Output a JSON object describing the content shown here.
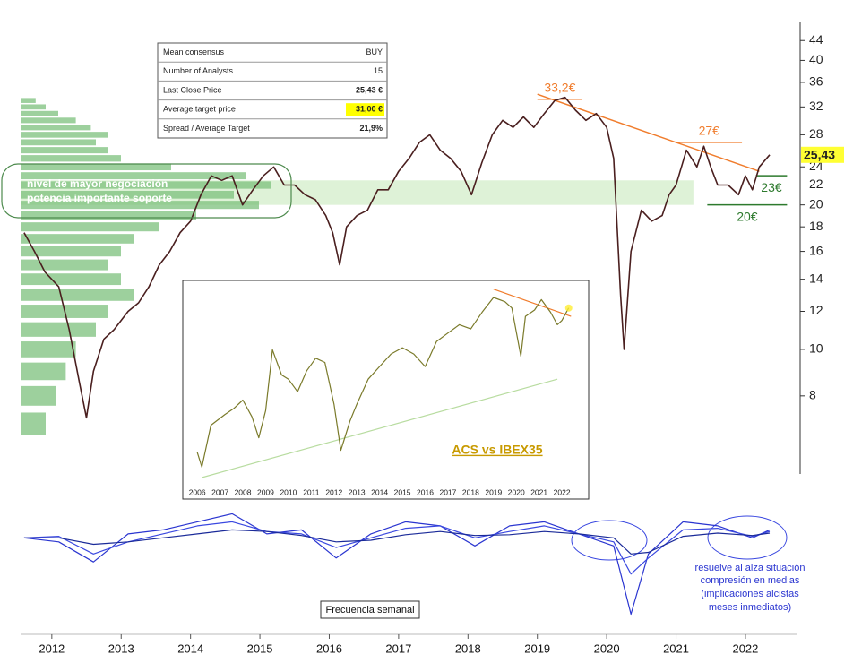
{
  "table": {
    "rows": [
      [
        "Mean consensus",
        "BUY"
      ],
      [
        "Number of Analysts",
        "15"
      ],
      [
        "Last Close Price",
        "25,43 €"
      ],
      [
        "Average target price",
        "31,00 €"
      ],
      [
        "Spread / Average Target",
        "21,9%"
      ]
    ]
  },
  "notes": {
    "support": [
      "nivel de mayor negociación",
      "potencia importante soporte"
    ],
    "compression": [
      "resuelve al alza situación",
      "compresión en medias",
      "(implicaciones alcistas",
      "meses inmediatos)"
    ],
    "frequency": "Frecuencia semanal"
  },
  "chart_data": [
    {
      "type": "line",
      "log_scale": true,
      "color": "#4a1f1f",
      "xlim": [
        2011.55,
        2022.75
      ],
      "ylim": [
        5.5,
        48
      ],
      "xticks": [
        2012,
        2013,
        2014,
        2015,
        2016,
        2017,
        2018,
        2019,
        2020,
        2021,
        2022
      ],
      "yticks": [
        44,
        40,
        36,
        32,
        28,
        24,
        22,
        20,
        18,
        16,
        14,
        12,
        10,
        8
      ],
      "last_value": {
        "value": 25.43,
        "label": "25,43"
      },
      "x": [
        2011.6,
        2011.75,
        2011.9,
        2012.1,
        2012.25,
        2012.4,
        2012.5,
        2012.6,
        2012.75,
        2012.9,
        2013.1,
        2013.25,
        2013.4,
        2013.55,
        2013.7,
        2013.85,
        2014.0,
        2014.15,
        2014.3,
        2014.45,
        2014.6,
        2014.75,
        2014.9,
        2015.05,
        2015.2,
        2015.35,
        2015.5,
        2015.65,
        2015.8,
        2015.95,
        2016.05,
        2016.15,
        2016.25,
        2016.4,
        2016.55,
        2016.7,
        2016.85,
        2017.0,
        2017.15,
        2017.3,
        2017.45,
        2017.6,
        2017.75,
        2017.9,
        2018.05,
        2018.2,
        2018.35,
        2018.5,
        2018.65,
        2018.8,
        2018.95,
        2019.1,
        2019.25,
        2019.4,
        2019.55,
        2019.7,
        2019.85,
        2020.0,
        2020.1,
        2020.2,
        2020.25,
        2020.35,
        2020.5,
        2020.65,
        2020.8,
        2020.9,
        2021.0,
        2021.15,
        2021.3,
        2021.4,
        2021.5,
        2021.6,
        2021.75,
        2021.9,
        2022.0,
        2022.1,
        2022.2,
        2022.35
      ],
      "values": [
        17.5,
        16,
        14.5,
        13.5,
        11,
        8.5,
        7.2,
        9,
        10.5,
        11,
        12,
        12.5,
        13.5,
        15,
        16,
        17.5,
        18.5,
        21,
        23,
        22.5,
        23,
        20,
        21.5,
        23,
        24,
        22,
        22,
        21,
        20.5,
        19,
        17.5,
        15,
        18,
        19,
        19.5,
        21.5,
        21.5,
        23.5,
        25,
        27,
        28,
        26,
        25,
        23.5,
        21,
        24.5,
        28,
        30,
        29,
        30.5,
        29,
        31,
        33,
        33.5,
        31.5,
        30,
        31,
        29,
        25,
        13,
        10,
        16,
        19.5,
        18.5,
        19,
        21,
        22,
        26,
        24,
        26.5,
        24,
        22,
        22,
        21,
        23,
        21.5,
        24,
        25.43
      ],
      "support_band": {
        "range": [
          20,
          22.5
        ],
        "x": [
          2011.55,
          2021.25
        ],
        "color": "#d8f0d0"
      },
      "trendline": {
        "x": [
          2019.0,
          2022.2
        ],
        "y": [
          34,
          23.5
        ],
        "color": "#f07c2c"
      },
      "levels": [
        {
          "value": 33.2,
          "label": "33,2€",
          "x": [
            2019.0,
            2019.65
          ],
          "color": "#f07c2c"
        },
        {
          "value": 27,
          "label": "27€",
          "x": [
            2021.0,
            2021.95
          ],
          "color": "#f07c2c"
        },
        {
          "value": 23,
          "label": "23€",
          "x": [
            2022.15,
            2022.6
          ],
          "color": "#2d7a2d"
        },
        {
          "value": 20,
          "label": "20€",
          "x": [
            2021.45,
            2022.6
          ],
          "color": "#2d7a2d"
        }
      ],
      "volume_profile": {
        "color": "#7cc07c",
        "levels": [
          7,
          8,
          9,
          10,
          11,
          12,
          13,
          14,
          15,
          16,
          17,
          18,
          19,
          20,
          21,
          22,
          23,
          24,
          25,
          26,
          27,
          28,
          29,
          30,
          31,
          32,
          33
        ],
        "values": [
          10,
          14,
          18,
          22,
          30,
          35,
          45,
          40,
          35,
          40,
          45,
          55,
          70,
          95,
          85,
          100,
          90,
          60,
          40,
          35,
          30,
          35,
          28,
          22,
          15,
          10,
          6
        ]
      }
    },
    {
      "type": "line",
      "ylim": [
        -1,
        0.45
      ],
      "x": [
        2011.6,
        2012.1,
        2012.6,
        2013.1,
        2013.6,
        2014.1,
        2014.6,
        2015.1,
        2015.6,
        2016.1,
        2016.6,
        2017.1,
        2017.6,
        2018.1,
        2018.6,
        2019.1,
        2019.6,
        2020.1,
        2020.35,
        2020.6,
        2021.1,
        2021.6,
        2022.1,
        2022.35
      ],
      "series": [
        {
          "color": "#2a35d0",
          "values": [
            0,
            -0.05,
            -0.3,
            0.05,
            0.1,
            0.2,
            0.3,
            0.05,
            0.1,
            -0.25,
            0.05,
            0.2,
            0.15,
            -0.1,
            0.15,
            0.2,
            0.05,
            -0.1,
            -0.95,
            -0.2,
            0.2,
            0.15,
            0,
            0.1
          ]
        },
        {
          "color": "#3a48e0",
          "values": [
            0,
            0.02,
            -0.2,
            -0.05,
            0.05,
            0.15,
            0.2,
            0.08,
            0.05,
            -0.12,
            0,
            0.12,
            0.15,
            0,
            0.08,
            0.15,
            0.05,
            -0.05,
            -0.45,
            -0.25,
            0.1,
            0.12,
            0.02,
            0.08
          ]
        },
        {
          "color": "#1a2a99",
          "values": [
            0,
            0,
            -0.08,
            -0.05,
            0,
            0.05,
            0.1,
            0.08,
            0.03,
            -0.05,
            -0.03,
            0.04,
            0.08,
            0.03,
            0.04,
            0.08,
            0.05,
            0,
            -0.2,
            -0.18,
            0.02,
            0.06,
            0.03,
            0.06
          ]
        }
      ]
    },
    {
      "type": "line",
      "title": "ACS vs IBEX35",
      "color": "#7a7a2a",
      "xlim": [
        2005.6,
        2022.9
      ],
      "ylim": [
        0,
        9.5
      ],
      "xticks": [
        2006,
        2007,
        2008,
        2009,
        2010,
        2011,
        2012,
        2013,
        2014,
        2015,
        2016,
        2017,
        2018,
        2019,
        2020,
        2021,
        2022
      ],
      "x": [
        2006.0,
        2006.2,
        2006.6,
        2007.2,
        2007.6,
        2008.0,
        2008.4,
        2008.7,
        2009.0,
        2009.3,
        2009.7,
        2010.0,
        2010.4,
        2010.8,
        2011.2,
        2011.6,
        2012.0,
        2012.3,
        2012.7,
        2013.0,
        2013.5,
        2014.0,
        2014.5,
        2015.0,
        2015.5,
        2016.0,
        2016.5,
        2017.0,
        2017.5,
        2018.0,
        2018.5,
        2019.0,
        2019.5,
        2019.8,
        2020.2,
        2020.4,
        2020.8,
        2021.1,
        2021.5,
        2021.8,
        2022.0,
        2022.3
      ],
      "values": [
        1.5,
        0.8,
        2.8,
        3.3,
        3.6,
        4.0,
        3.2,
        2.2,
        3.5,
        6.4,
        5.2,
        5.0,
        4.4,
        5.4,
        6.0,
        5.8,
        3.8,
        1.6,
        3.0,
        3.8,
        5.0,
        5.6,
        6.2,
        6.5,
        6.2,
        5.6,
        6.8,
        7.2,
        7.6,
        7.4,
        8.2,
        8.9,
        8.7,
        8.4,
        6.1,
        8.0,
        8.3,
        8.8,
        8.2,
        7.6,
        7.8,
        8.4
      ],
      "support_line": {
        "x": [
          2006.2,
          2021.8
        ],
        "y": [
          0.3,
          5.0
        ],
        "color": "#b8dca0"
      },
      "trendline": {
        "x": [
          2019.0,
          2022.4
        ],
        "y": [
          9.3,
          8.0
        ],
        "color": "#f07c2c"
      }
    }
  ]
}
